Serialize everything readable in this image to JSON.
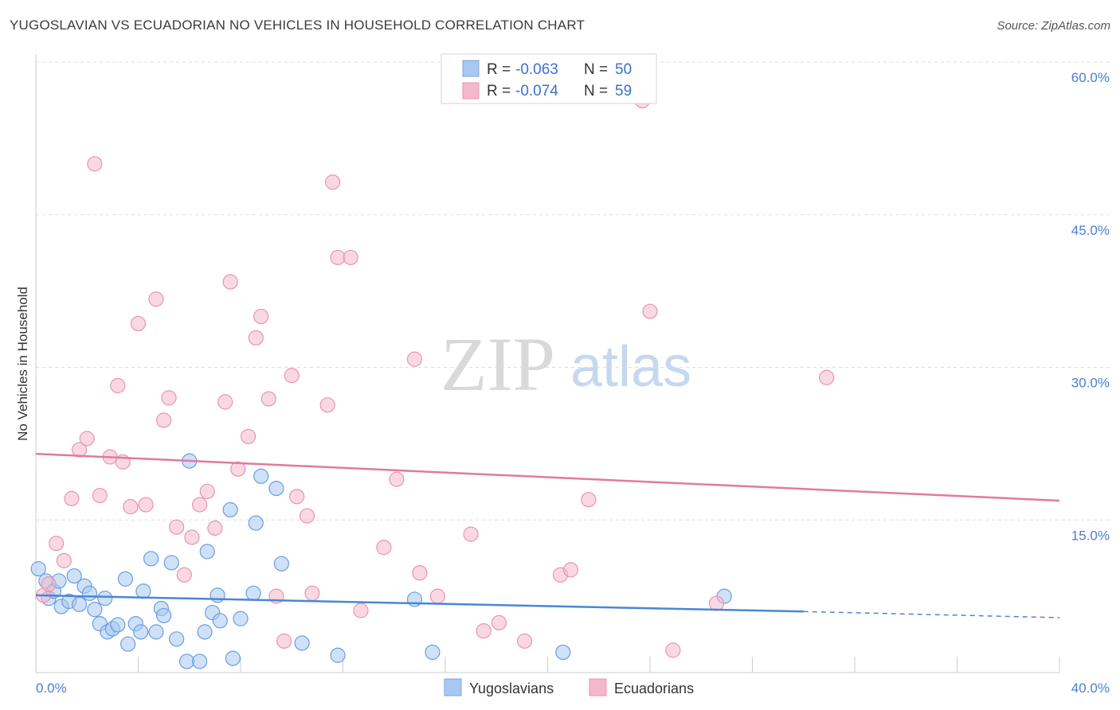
{
  "header": {
    "title": "YUGOSLAVIAN VS ECUADORIAN NO VEHICLES IN HOUSEHOLD CORRELATION CHART",
    "source": "Source: ZipAtlas.com"
  },
  "watermark": {
    "zip": "ZIP",
    "atlas": "atlas"
  },
  "legend": {
    "rows": [
      {
        "r_label": "R =",
        "r_value": "-0.063",
        "n_label": "N =",
        "n_value": "50",
        "color": "#a8c8f0"
      },
      {
        "r_label": "R =",
        "r_value": "-0.074",
        "n_label": "N =",
        "n_value": "59",
        "color": "#f5b8cb"
      }
    ]
  },
  "bottom_legend": [
    {
      "label": "Yugoslavians",
      "color": "#a8c8f0"
    },
    {
      "label": "Ecuadorians",
      "color": "#f5b8cb"
    }
  ],
  "chart_data": {
    "type": "scatter",
    "title": "YUGOSLAVIAN VS ECUADORIAN NO VEHICLES IN HOUSEHOLD CORRELATION CHART",
    "xlabel": "",
    "ylabel": "No Vehicles in Household",
    "xlim": [
      0,
      40
    ],
    "ylim": [
      0,
      60
    ],
    "x_tick_labels": [
      "0.0%",
      "40.0%"
    ],
    "y_ticks": [
      15,
      30,
      45,
      60
    ],
    "y_tick_labels": [
      "15.0%",
      "30.0%",
      "45.0%",
      "60.0%"
    ],
    "grid": true,
    "legend_position": "top-center",
    "colors": {
      "yugoslavians": "#4a86d8",
      "ecuadorians": "#e07aa0"
    },
    "series": [
      {
        "name": "Yugoslavians",
        "color": "#a8c8f0",
        "stroke": "#6a9ee0",
        "trend": {
          "x": [
            0,
            30
          ],
          "y": [
            7.6,
            6.0
          ],
          "dashed_to": [
            40,
            5.4
          ]
        },
        "points": [
          [
            0.1,
            10.2
          ],
          [
            0.4,
            9.0
          ],
          [
            0.5,
            7.3
          ],
          [
            0.7,
            8.0
          ],
          [
            0.9,
            9.0
          ],
          [
            1.0,
            6.5
          ],
          [
            1.3,
            7.0
          ],
          [
            1.5,
            9.5
          ],
          [
            1.7,
            6.7
          ],
          [
            1.9,
            8.5
          ],
          [
            2.1,
            7.8
          ],
          [
            2.3,
            6.2
          ],
          [
            2.5,
            4.8
          ],
          [
            2.7,
            7.3
          ],
          [
            2.8,
            4.0
          ],
          [
            3.0,
            4.3
          ],
          [
            3.2,
            4.7
          ],
          [
            3.5,
            9.2
          ],
          [
            3.6,
            2.8
          ],
          [
            3.9,
            4.8
          ],
          [
            4.1,
            4.0
          ],
          [
            4.2,
            8.0
          ],
          [
            4.5,
            11.2
          ],
          [
            4.7,
            4.0
          ],
          [
            4.9,
            6.3
          ],
          [
            5.0,
            5.6
          ],
          [
            5.3,
            10.8
          ],
          [
            5.5,
            3.3
          ],
          [
            5.9,
            1.1
          ],
          [
            6.0,
            20.8
          ],
          [
            6.4,
            1.1
          ],
          [
            6.6,
            4.0
          ],
          [
            6.7,
            11.9
          ],
          [
            6.9,
            5.9
          ],
          [
            7.1,
            7.6
          ],
          [
            7.2,
            5.1
          ],
          [
            7.6,
            16.0
          ],
          [
            7.7,
            1.4
          ],
          [
            8.0,
            5.3
          ],
          [
            8.5,
            7.8
          ],
          [
            8.6,
            14.7
          ],
          [
            8.8,
            19.3
          ],
          [
            9.4,
            18.1
          ],
          [
            9.6,
            10.7
          ],
          [
            10.4,
            2.9
          ],
          [
            11.8,
            1.7
          ],
          [
            14.8,
            7.2
          ],
          [
            15.5,
            2.0
          ],
          [
            20.6,
            2.0
          ],
          [
            26.9,
            7.5
          ]
        ]
      },
      {
        "name": "Ecuadorians",
        "color": "#f5b8cb",
        "stroke": "#e895b0",
        "trend": {
          "x": [
            0,
            40
          ],
          "y": [
            21.5,
            16.9
          ]
        },
        "points": [
          [
            0.3,
            7.6
          ],
          [
            0.5,
            8.7
          ],
          [
            0.8,
            12.7
          ],
          [
            1.1,
            11.0
          ],
          [
            1.4,
            17.1
          ],
          [
            1.7,
            21.9
          ],
          [
            2.0,
            23.0
          ],
          [
            2.5,
            17.4
          ],
          [
            2.9,
            21.2
          ],
          [
            3.2,
            28.2
          ],
          [
            3.4,
            20.7
          ],
          [
            3.7,
            16.3
          ],
          [
            4.0,
            34.3
          ],
          [
            4.3,
            16.5
          ],
          [
            4.7,
            36.7
          ],
          [
            5.0,
            24.8
          ],
          [
            5.2,
            27.0
          ],
          [
            5.5,
            14.3
          ],
          [
            5.8,
            9.6
          ],
          [
            6.1,
            13.3
          ],
          [
            6.4,
            16.5
          ],
          [
            6.7,
            17.8
          ],
          [
            7.0,
            14.2
          ],
          [
            7.4,
            26.6
          ],
          [
            7.6,
            38.4
          ],
          [
            7.9,
            20.0
          ],
          [
            8.3,
            23.2
          ],
          [
            8.6,
            32.9
          ],
          [
            8.8,
            35.0
          ],
          [
            9.1,
            26.9
          ],
          [
            9.4,
            7.5
          ],
          [
            9.7,
            3.1
          ],
          [
            10.0,
            29.2
          ],
          [
            10.2,
            17.3
          ],
          [
            10.6,
            15.4
          ],
          [
            10.8,
            7.8
          ],
          [
            11.4,
            26.3
          ],
          [
            11.6,
            48.2
          ],
          [
            11.8,
            40.8
          ],
          [
            12.3,
            40.8
          ],
          [
            12.7,
            6.1
          ],
          [
            13.6,
            12.3
          ],
          [
            14.1,
            19.0
          ],
          [
            14.8,
            30.8
          ],
          [
            15.0,
            9.8
          ],
          [
            15.7,
            7.5
          ],
          [
            17.0,
            13.6
          ],
          [
            17.5,
            4.1
          ],
          [
            18.1,
            4.9
          ],
          [
            19.1,
            3.1
          ],
          [
            20.5,
            9.6
          ],
          [
            20.9,
            10.1
          ],
          [
            21.6,
            17.0
          ],
          [
            23.7,
            56.2
          ],
          [
            24.0,
            35.5
          ],
          [
            24.9,
            2.2
          ],
          [
            26.6,
            6.8
          ],
          [
            30.9,
            29.0
          ],
          [
            2.3,
            50.0
          ]
        ]
      }
    ]
  }
}
